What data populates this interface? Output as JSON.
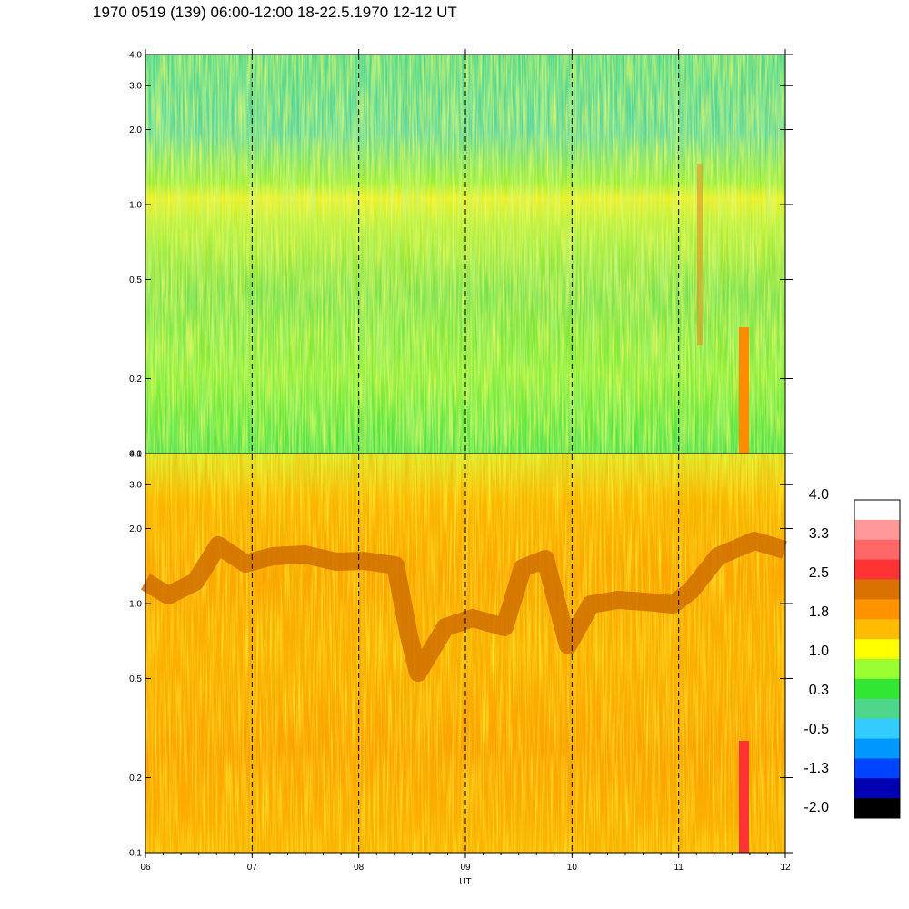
{
  "title": "1970 0519 (139) 06:00-12:00 18-22.5.1970  12-12 UT",
  "chart_data": [
    {
      "type": "heatmap",
      "panel": "upper",
      "x_axis": {
        "range": [
          6,
          12
        ],
        "tick_labels": [
          "06",
          "07",
          "08",
          "09",
          "10",
          "11",
          "12"
        ]
      },
      "y_axis": {
        "scale": "log",
        "range": [
          0.1,
          4.0
        ],
        "ticks": [
          0.1,
          0.2,
          0.5,
          1.0,
          2.0,
          3.0,
          4.0
        ],
        "tick_labels": [
          "0.1",
          "0.2",
          "0.5",
          "1.0",
          "2.0",
          "3.0",
          "4.0"
        ]
      },
      "hour_lines": [
        7,
        8,
        9,
        10,
        11
      ],
      "dominant_levels": "green to blue-green (about 0.3 to -0.5), yellow band near 1.0-1.5, orange streak near 11.6 UT below 0.35"
    },
    {
      "type": "heatmap",
      "panel": "lower",
      "x_axis": {
        "range": [
          6,
          12
        ],
        "tick_labels": [
          "06",
          "07",
          "08",
          "09",
          "10",
          "11",
          "12"
        ],
        "label": "UT"
      },
      "y_axis": {
        "scale": "log",
        "range": [
          0.1,
          4.0
        ],
        "ticks": [
          0.1,
          0.2,
          0.5,
          1.0,
          2.0,
          3.0,
          4.0
        ],
        "tick_labels": [
          "0.1",
          "0.2",
          "0.5",
          "1.0",
          "2.0",
          "3.0",
          "4.0"
        ]
      },
      "hour_lines": [
        7,
        8,
        9,
        10,
        11
      ],
      "dominant_levels": "orange / amber (about 1.0 to 2.5), dark orange band wandering between 0.5 and 1.8, red streak near 11.6 UT below 0.28"
    }
  ],
  "colorbar": {
    "labels": [
      "4.0",
      "3.3",
      "2.5",
      "1.8",
      "1.0",
      "0.3",
      "-0.5",
      "-1.3",
      "-2.0"
    ],
    "colors": [
      "#ffffff",
      "#ff9999",
      "#ff6666",
      "#ff3333",
      "#d87200",
      "#ff9300",
      "#ffbb00",
      "#ffff00",
      "#99ff33",
      "#33e633",
      "#4dd68c",
      "#33ccff",
      "#0099ff",
      "#0044ff",
      "#0000b3",
      "#000000"
    ]
  }
}
